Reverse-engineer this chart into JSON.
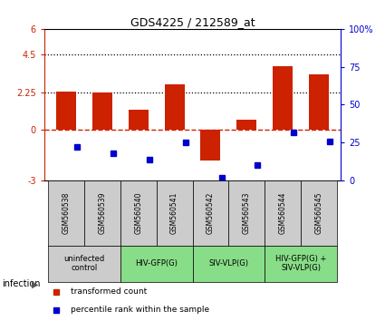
{
  "title": "GDS4225 / 212589_at",
  "samples": [
    "GSM560538",
    "GSM560539",
    "GSM560540",
    "GSM560541",
    "GSM560542",
    "GSM560543",
    "GSM560544",
    "GSM560545"
  ],
  "transformed_count": [
    2.3,
    2.2,
    1.2,
    2.7,
    -1.8,
    0.6,
    3.8,
    3.3
  ],
  "percentile_rank": [
    22,
    18,
    14,
    25,
    2,
    10,
    32,
    26
  ],
  "ylim_left": [
    -3,
    6
  ],
  "ylim_right": [
    0,
    100
  ],
  "yticks_left": [
    -3,
    0,
    2.25,
    4.5,
    6
  ],
  "ytick_labels_left": [
    "-3",
    "0",
    "2.25",
    "4.5",
    "6"
  ],
  "yticks_right": [
    0,
    25,
    50,
    75,
    100
  ],
  "ytick_labels_right": [
    "0",
    "25",
    "50",
    "75",
    "100%"
  ],
  "hlines_dotted": [
    4.5,
    2.25
  ],
  "hline_dashed_color": "#cc2200",
  "bar_color": "#cc2200",
  "dot_color": "#0000cc",
  "infection_groups": [
    {
      "label": "uninfected\ncontrol",
      "start": 0,
      "end": 2,
      "color": "#cccccc"
    },
    {
      "label": "HIV-GFP(G)",
      "start": 2,
      "end": 4,
      "color": "#88dd88"
    },
    {
      "label": "SIV-VLP(G)",
      "start": 4,
      "end": 6,
      "color": "#88dd88"
    },
    {
      "label": "HIV-GFP(G) +\nSIV-VLP(G)",
      "start": 6,
      "end": 8,
      "color": "#88dd88"
    }
  ],
  "xlabel_infection": "infection",
  "legend_red": "transformed count",
  "legend_blue": "percentile rank within the sample",
  "bar_width": 0.55,
  "background_color": "#ffffff"
}
